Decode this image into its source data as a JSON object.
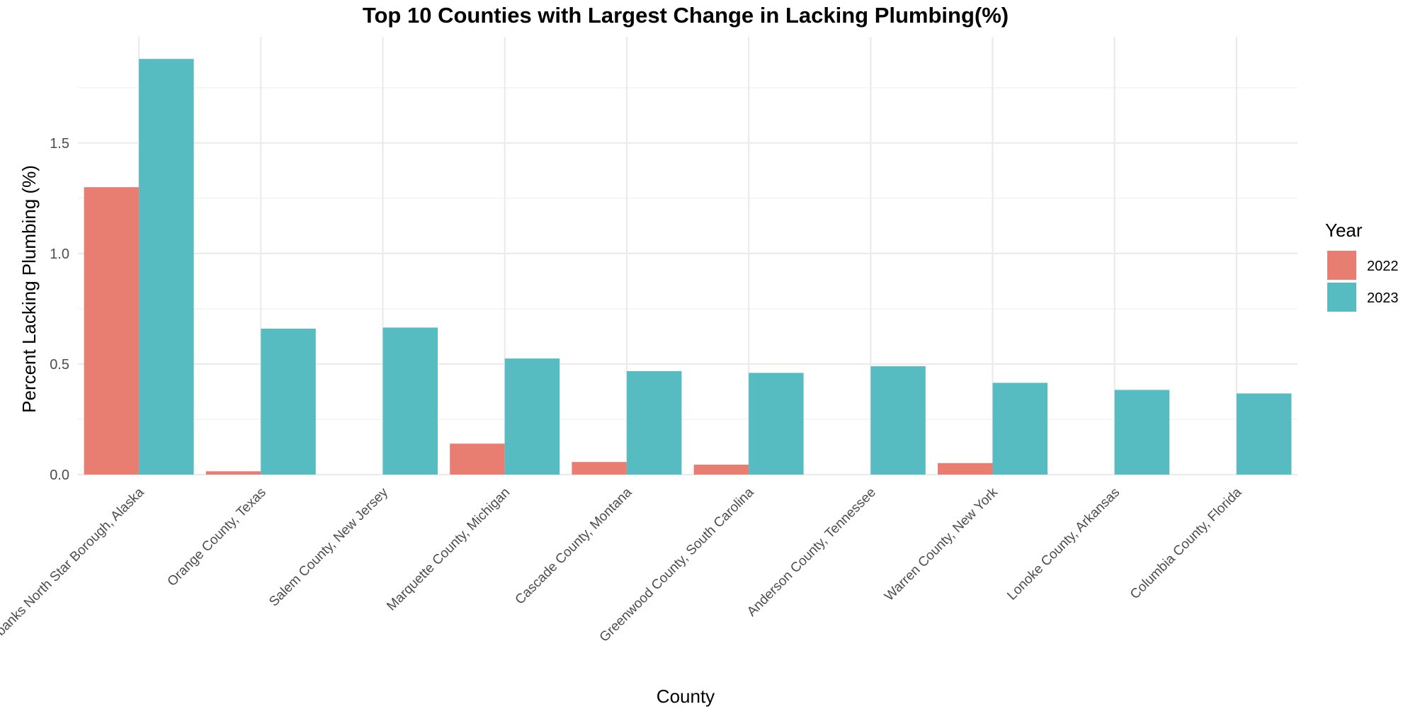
{
  "chart_data": {
    "type": "bar",
    "title": "Top 10 Counties with Largest Change in Lacking Plumbing(%)",
    "xlabel": "County",
    "ylabel": "Percent Lacking Plumbing (%)",
    "categories": [
      "Fairbanks North Star Borough, Alaska",
      "Orange County, Texas",
      "Salem County, New Jersey",
      "Marquette County, Michigan",
      "Cascade County, Montana",
      "Greenwood County, South Carolina",
      "Anderson County, Tennessee",
      "Warren County, New York",
      "Lonoke County, Arkansas",
      "Columbia County, Florida"
    ],
    "series": [
      {
        "name": "2022",
        "color": "#e87d72",
        "values": [
          1.3,
          0.015,
          0,
          0.14,
          0.057,
          0.045,
          0,
          0.052,
          0,
          0
        ]
      },
      {
        "name": "2023",
        "color": "#56bcc2",
        "values": [
          1.88,
          0.66,
          0.665,
          0.525,
          0.468,
          0.46,
          0.49,
          0.415,
          0.383,
          0.367
        ]
      }
    ],
    "ylim": [
      0,
      1.98
    ],
    "yticks": [
      0.0,
      0.5,
      1.0,
      1.5
    ],
    "ytick_labels": [
      "0.0",
      "0.5",
      "1.0",
      "1.5"
    ],
    "grid": true,
    "legend": {
      "title": "Year",
      "position": "right"
    }
  }
}
